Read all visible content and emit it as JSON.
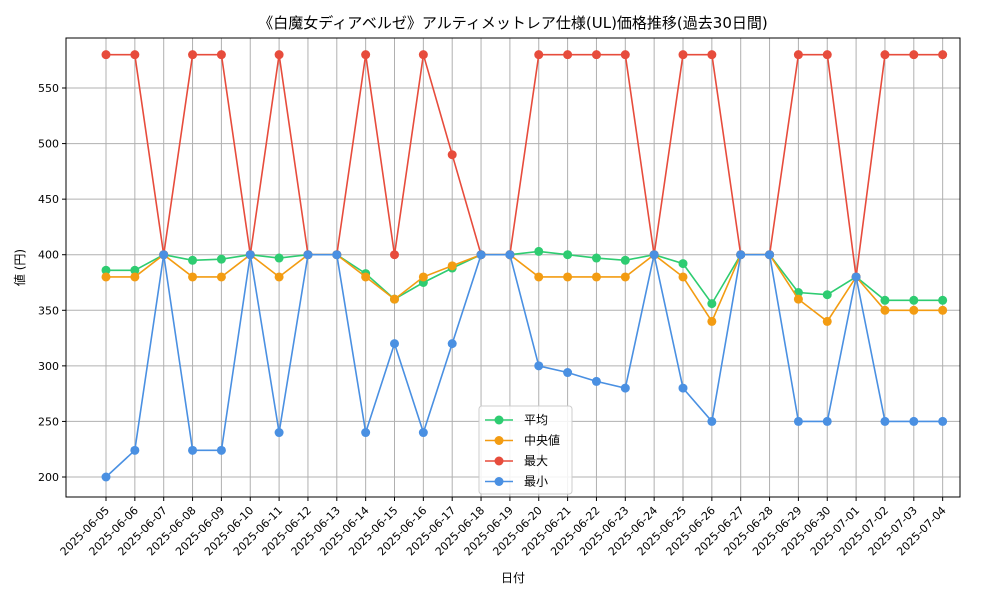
{
  "chart_data": {
    "type": "line",
    "title": "《白魔女ディアベルゼ》アルティメットレア仕様(UL)価格推移(過去30日間)",
    "xlabel": "日付",
    "ylabel": "値 (円)",
    "ylim": [
      182,
      595
    ],
    "yticks": [
      200,
      250,
      300,
      350,
      400,
      450,
      500,
      550
    ],
    "grid": true,
    "legend_position": "bottom-center",
    "categories": [
      "2025-06-05",
      "2025-06-06",
      "2025-06-07",
      "2025-06-08",
      "2025-06-09",
      "2025-06-10",
      "2025-06-11",
      "2025-06-12",
      "2025-06-13",
      "2025-06-14",
      "2025-06-15",
      "2025-06-16",
      "2025-06-17",
      "2025-06-18",
      "2025-06-19",
      "2025-06-20",
      "2025-06-21",
      "2025-06-22",
      "2025-06-23",
      "2025-06-24",
      "2025-06-25",
      "2025-06-26",
      "2025-06-27",
      "2025-06-28",
      "2025-06-29",
      "2025-06-30",
      "2025-07-01",
      "2025-07-02",
      "2025-07-03",
      "2025-07-04"
    ],
    "series": [
      {
        "name": "平均",
        "color": "#2ecc71",
        "values": [
          386,
          386,
          400,
          395,
          396,
          400,
          397,
          400,
          400,
          383,
          360,
          375,
          388,
          400,
          400,
          403,
          400,
          397,
          395,
          400,
          392,
          356,
          400,
          400,
          366,
          364,
          380,
          359,
          359,
          359
        ]
      },
      {
        "name": "中央値",
        "color": "#f39c12",
        "values": [
          380,
          380,
          400,
          380,
          380,
          400,
          380,
          400,
          400,
          380,
          360,
          380,
          390,
          400,
          400,
          380,
          380,
          380,
          380,
          400,
          380,
          340,
          400,
          400,
          360,
          340,
          380,
          350,
          350,
          350
        ]
      },
      {
        "name": "最大",
        "color": "#e74c3c",
        "values": [
          580,
          580,
          400,
          580,
          580,
          400,
          580,
          400,
          400,
          580,
          400,
          580,
          490,
          400,
          400,
          580,
          580,
          580,
          580,
          400,
          580,
          580,
          400,
          400,
          580,
          580,
          380,
          580,
          580,
          580
        ]
      },
      {
        "name": "最小",
        "color": "#4a90e2",
        "values": [
          200,
          224,
          400,
          224,
          224,
          400,
          240,
          400,
          400,
          240,
          320,
          240,
          320,
          400,
          400,
          300,
          294,
          286,
          280,
          400,
          280,
          250,
          400,
          400,
          250,
          250,
          380,
          250,
          250,
          250
        ]
      }
    ]
  }
}
